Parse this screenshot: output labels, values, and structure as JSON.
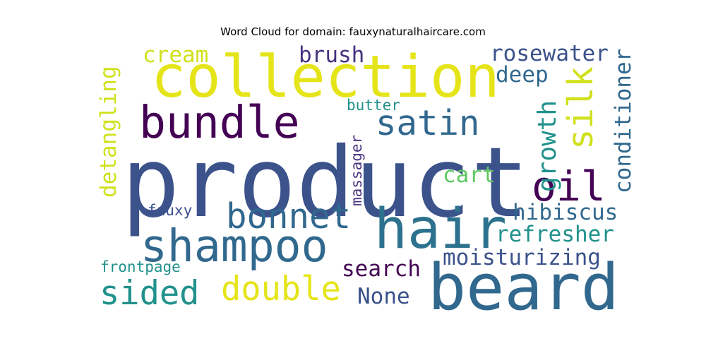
{
  "chart_data": {
    "type": "wordcloud",
    "title": "Word Cloud for domain: fauxynaturalhaircare.com",
    "words": [
      {
        "text": "product",
        "weight": 100,
        "color": "#3b528b",
        "vertical": false
      },
      {
        "text": "beard",
        "weight": 66,
        "color": "#31688e",
        "vertical": false
      },
      {
        "text": "collection",
        "weight": 60,
        "color": "#e5e419",
        "vertical": false
      },
      {
        "text": "hair",
        "weight": 57,
        "color": "#2c728e",
        "vertical": false
      },
      {
        "text": "shampoo",
        "weight": 46,
        "color": "#31688e",
        "vertical": false
      },
      {
        "text": "bundle",
        "weight": 46,
        "color": "#440154",
        "vertical": false
      },
      {
        "text": "oil",
        "weight": 42,
        "color": "#440154",
        "vertical": false
      },
      {
        "text": "satin",
        "weight": 36,
        "color": "#31688e",
        "vertical": false
      },
      {
        "text": "bonnet",
        "weight": 36,
        "color": "#31688e",
        "vertical": false
      },
      {
        "text": "silk",
        "weight": 36,
        "color": "#d0e11c",
        "vertical": true
      },
      {
        "text": "double",
        "weight": 34,
        "color": "#e5e419",
        "vertical": false
      },
      {
        "text": "sided",
        "weight": 34,
        "color": "#21918c",
        "vertical": false
      },
      {
        "text": "growth",
        "weight": 26,
        "color": "#21918c",
        "vertical": true
      },
      {
        "text": "search",
        "weight": 23,
        "color": "#440154",
        "vertical": false
      },
      {
        "text": "moisturizing",
        "weight": 23,
        "color": "#3b528b",
        "vertical": false
      },
      {
        "text": "hibiscus",
        "weight": 23,
        "color": "#31688e",
        "vertical": false
      },
      {
        "text": "refresher",
        "weight": 23,
        "color": "#21918c",
        "vertical": false
      },
      {
        "text": "conditioner",
        "weight": 23,
        "color": "#31688e",
        "vertical": true
      },
      {
        "text": "detangling",
        "weight": 23,
        "color": "#d0e11c",
        "vertical": true
      },
      {
        "text": "rosewater",
        "weight": 23,
        "color": "#3b528b",
        "vertical": false
      },
      {
        "text": "brush",
        "weight": 23,
        "color": "#46337e",
        "vertical": false
      },
      {
        "text": "cream",
        "weight": 23,
        "color": "#d0e11c",
        "vertical": false
      },
      {
        "text": "deep",
        "weight": 23,
        "color": "#31688e",
        "vertical": false
      },
      {
        "text": "cart",
        "weight": 23,
        "color": "#5ec962",
        "vertical": false
      },
      {
        "text": "None",
        "weight": 23,
        "color": "#3b528b",
        "vertical": false
      },
      {
        "text": "massager",
        "weight": 16,
        "color": "#46337e",
        "vertical": true
      },
      {
        "text": "butter",
        "weight": 16,
        "color": "#21918c",
        "vertical": false
      },
      {
        "text": "frontpage",
        "weight": 16,
        "color": "#21918c",
        "vertical": false
      },
      {
        "text": "fauxy",
        "weight": 16,
        "color": "#3b528b",
        "vertical": false
      }
    ]
  }
}
